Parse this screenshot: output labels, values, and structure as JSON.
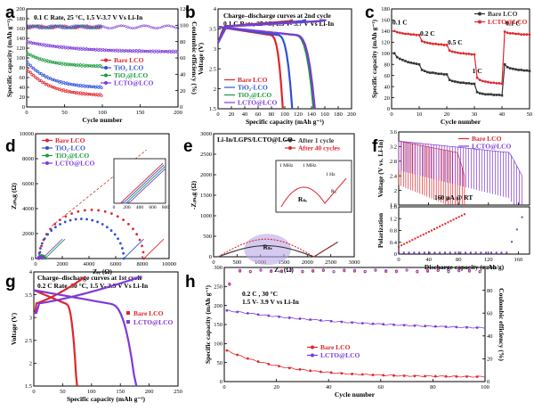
{
  "chart_data": [
    {
      "id": "a",
      "type": "scatter",
      "panel_label": "a",
      "annotation": "0.1 C Rate, 25 °C, 1.5 V-3.7 V Vs Li-In",
      "xlabel": "Cycle number",
      "ylabel": "Specific capacity (mAh g⁻¹)",
      "y2label": "Coulombic efficiency (%)",
      "xlim": [
        0,
        200
      ],
      "ylim": [
        0,
        200
      ],
      "y2lim": [
        0,
        120
      ],
      "xticks": [
        0,
        50,
        100,
        150,
        200
      ],
      "yticks": [
        0,
        20,
        40,
        60,
        80,
        100,
        120,
        140,
        160,
        180,
        200
      ],
      "y2ticks": [
        0,
        20,
        40,
        60,
        80,
        100,
        120
      ],
      "legend": [
        "Bare LCO",
        "TiO₂ LCO",
        "TiO₂@LCO",
        "LCTO@LCO"
      ],
      "series": [
        {
          "name": "Bare LCO",
          "color": "#e0262b",
          "n": 100,
          "start": 78,
          "end": 22
        },
        {
          "name": "TiO2 LCO",
          "color": "#2e4fd8",
          "n": 100,
          "start": 92,
          "end": 38
        },
        {
          "name": "TiO2@LCO",
          "color": "#1a9a3a",
          "n": 100,
          "start": 110,
          "end": 82
        },
        {
          "name": "LCTO@LCO",
          "color": "#7d3ad8",
          "n": 200,
          "start": 133,
          "end": 112
        }
      ],
      "efficiency": {
        "value": 100,
        "n": 200
      }
    },
    {
      "id": "b",
      "type": "line",
      "panel_label": "b",
      "annotation": [
        "Charge–discharge curves at 2nd cycle",
        "0.1 C Rate, 25 °C,  1.5 V- 3.7 V Vs Li-In"
      ],
      "xlabel": "Specific capacity (mAh g⁻¹)",
      "ylabel": "Voltage (V)",
      "xlim": [
        0,
        200
      ],
      "ylim": [
        1.5,
        4.0
      ],
      "xticks": [
        0,
        20,
        40,
        60,
        80,
        100,
        120,
        140,
        160,
        180,
        200
      ],
      "yticks": [
        1.5,
        2.0,
        2.5,
        3.0,
        3.5,
        4.0
      ],
      "legend": [
        "Bare LCO",
        "TiO₂-LCO",
        "TiO₂@LCO",
        "LCTO@LCO"
      ],
      "series": [
        {
          "name": "Bare LCO",
          "color": "#e0262b",
          "charge_cap": 112,
          "discharge_cap": 97
        },
        {
          "name": "TiO2-LCO",
          "color": "#2e4fd8",
          "charge_cap": 132,
          "discharge_cap": 111
        },
        {
          "name": "TiO2@LCO",
          "color": "#1a9a3a",
          "charge_cap": 158,
          "discharge_cap": 143
        },
        {
          "name": "LCTO@LCO",
          "color": "#7d3ad8",
          "charge_cap": 162,
          "discharge_cap": 145
        }
      ]
    },
    {
      "id": "c",
      "type": "line",
      "panel_label": "c",
      "xlabel": "Cycle number",
      "ylabel": "Specific capacity (mAh g⁻¹)",
      "xlim": [
        0,
        50
      ],
      "ylim": [
        0,
        180
      ],
      "xticks": [
        0,
        10,
        20,
        30,
        40,
        50
      ],
      "yticks": [
        0,
        20,
        40,
        60,
        80,
        100,
        120,
        140,
        160,
        180
      ],
      "legend": [
        "Bare LCO",
        "LCTO@LCO"
      ],
      "rates": [
        "0.1 C",
        "0.2 C",
        "0.5 C",
        "1 C",
        "0.1 C"
      ],
      "series": [
        {
          "name": "Bare LCO",
          "color": "#333333",
          "values": [
            100,
            93,
            90,
            88,
            86,
            84,
            83,
            82,
            81,
            80,
            70,
            68,
            66,
            65,
            65,
            64,
            63,
            63,
            62,
            62,
            52,
            50,
            49,
            48,
            47,
            47,
            46,
            46,
            45,
            45,
            30,
            28,
            27,
            26,
            26,
            26,
            25,
            25,
            25,
            24,
            80,
            75,
            73,
            72,
            71,
            70,
            70,
            69,
            69,
            68
          ]
        },
        {
          "name": "LCTO@LCO",
          "color": "#e0262b",
          "values": [
            140,
            138,
            137,
            136,
            135,
            135,
            134,
            134,
            133,
            133,
            122,
            120,
            119,
            118,
            117,
            117,
            116,
            116,
            115,
            115,
            105,
            103,
            102,
            101,
            100,
            100,
            99,
            99,
            98,
            98,
            56,
            52,
            50,
            49,
            48,
            47,
            47,
            46,
            46,
            45,
            139,
            137,
            136,
            136,
            135,
            135,
            134,
            134,
            134,
            134
          ]
        }
      ]
    },
    {
      "id": "d",
      "type": "scatter",
      "panel_label": "d",
      "xlabel": "Zᵣₑ (Ω)",
      "ylabel": "Zᵢₘₐg (Ω)",
      "xlim": [
        0,
        10000
      ],
      "ylim": [
        0,
        10000
      ],
      "xticks": [
        0,
        2000,
        4000,
        6000,
        8000,
        10000
      ],
      "yticks": [
        0,
        2000,
        4000,
        6000,
        8000,
        10000
      ],
      "legend": [
        "Bare LCO",
        "TiO₂-LCO",
        "TiO₂@LCO",
        "LCTO@LCO"
      ],
      "series": [
        {
          "name": "Bare LCO",
          "color": "#e0262b",
          "r0": 300,
          "r1": 8100
        },
        {
          "name": "TiO2-LCO",
          "color": "#2e4fd8",
          "r0": 250,
          "r1": 6600
        },
        {
          "name": "TiO2@LCO",
          "color": "#1a9a3a",
          "r0": 220,
          "r1": 700
        },
        {
          "name": "LCTO@LCO",
          "color": "#7d3ad8",
          "r0": 200,
          "r1": 500
        }
      ],
      "inset": {
        "xticks": [
          0,
          200,
          400,
          600,
          800
        ],
        "yticks": [
          0,
          200,
          400,
          600,
          800
        ]
      }
    },
    {
      "id": "e",
      "type": "line",
      "panel_label": "e",
      "title": "Li-In/LGPS/LCTO@LCO",
      "xlabel": "Zᵣₑ (Ω)",
      "ylabel": "-Zᵢₘₐg (Ω)",
      "xlim": [
        0,
        3000
      ],
      "ylim": [
        0,
        3000
      ],
      "xticks": [
        0,
        500,
        1000,
        1500,
        2000,
        2500,
        3000
      ],
      "yticks": [
        0,
        500,
        1000,
        1500,
        2000,
        2500,
        3000
      ],
      "legend": [
        "After 1 cycle",
        "After 40 cycles"
      ],
      "series": [
        {
          "name": "After 1 cycle",
          "color": "#333333",
          "peak": 270
        },
        {
          "name": "After 40 cycles",
          "color": "#e0262b",
          "peak": 430
        }
      ],
      "labels": [
        "Rₑᵢ",
        "Rₛₑ",
        "Rₛₑ",
        "Rₑᵢ"
      ],
      "inset_freq": [
        "1 MHz",
        "1 MHz",
        "1 Hz"
      ]
    },
    {
      "id": "f",
      "type": "line",
      "panel_label": "f",
      "xlabel": "Discharge capacity (mAh/g)",
      "ylabel_top": "Voltage (V vs. Li-In)",
      "ylabel_bottom": "Polarization",
      "xlim": [
        0,
        175
      ],
      "xticks": [
        0,
        40,
        80,
        120,
        160
      ],
      "top_ylim": [
        1.6,
        3.6
      ],
      "top_yticks": [
        1.6,
        2.0,
        2.4,
        2.8,
        3.2,
        3.6
      ],
      "bottom_ylim": [
        0,
        1.6
      ],
      "bottom_yticks": [
        0.0,
        0.4,
        0.8,
        1.2,
        1.6
      ],
      "legend": [
        "Bare LCO",
        "LCTO@LCO"
      ],
      "annotation": "160 μA @ RT",
      "series": [
        {
          "name": "Bare LCO",
          "color": "#e0262b",
          "max_cap": 88
        },
        {
          "name": "LCTO@LCO",
          "color": "#7d3ad8",
          "max_cap": 165
        }
      ]
    },
    {
      "id": "g",
      "type": "line",
      "panel_label": "g",
      "annotation": [
        "Charge–discharge curves at 1st cycle",
        "0.2 C Rate, 30 °C,  1.5 V- 3.9 V Vs Li-In"
      ],
      "xlabel": "Specific capacity (mAh g⁻¹)",
      "ylabel": "Voltage (V)",
      "xlim": [
        0,
        250
      ],
      "ylim": [
        1.5,
        4.0
      ],
      "xticks": [
        0,
        50,
        100,
        150,
        200,
        250
      ],
      "yticks": [
        1.5,
        2.0,
        2.5,
        3.0,
        3.5,
        4.0
      ],
      "legend": [
        "Bare LCO",
        "LCTO@LCO"
      ],
      "series": [
        {
          "name": "Bare LCO",
          "color": "#e0262b",
          "charge_cap": 90,
          "discharge_cap": 75
        },
        {
          "name": "LCTO@LCO",
          "color": "#7d3ad8",
          "charge_cap": 187,
          "discharge_cap": 178
        }
      ]
    },
    {
      "id": "h",
      "type": "scatter",
      "panel_label": "h",
      "annotation": [
        "0.2 C ,   30 °C",
        "1.5 V- 3.9 V vs Li-In"
      ],
      "xlabel": "Cycle number",
      "ylabel": "Specific capacity (mAh g⁻¹)",
      "y2label": "Coulombic efficiency (%)",
      "xlim": [
        0,
        100
      ],
      "ylim": [
        0,
        300
      ],
      "y2lim": [
        0,
        100
      ],
      "xticks": [
        0,
        20,
        40,
        60,
        80,
        100
      ],
      "yticks": [
        0,
        50,
        100,
        150,
        200,
        250,
        300
      ],
      "y2ticks": [
        0,
        20,
        40,
        60,
        80,
        100
      ],
      "legend": [
        "Bare LCO",
        "LCTO@LCO"
      ],
      "series": [
        {
          "name": "Bare LCO",
          "color": "#e0262b",
          "start": 85,
          "end": 12
        },
        {
          "name": "LCTO@LCO",
          "color": "#7d3ad8",
          "start": 188,
          "end": 132
        }
      ],
      "efficiency": {
        "value": 97
      }
    }
  ]
}
